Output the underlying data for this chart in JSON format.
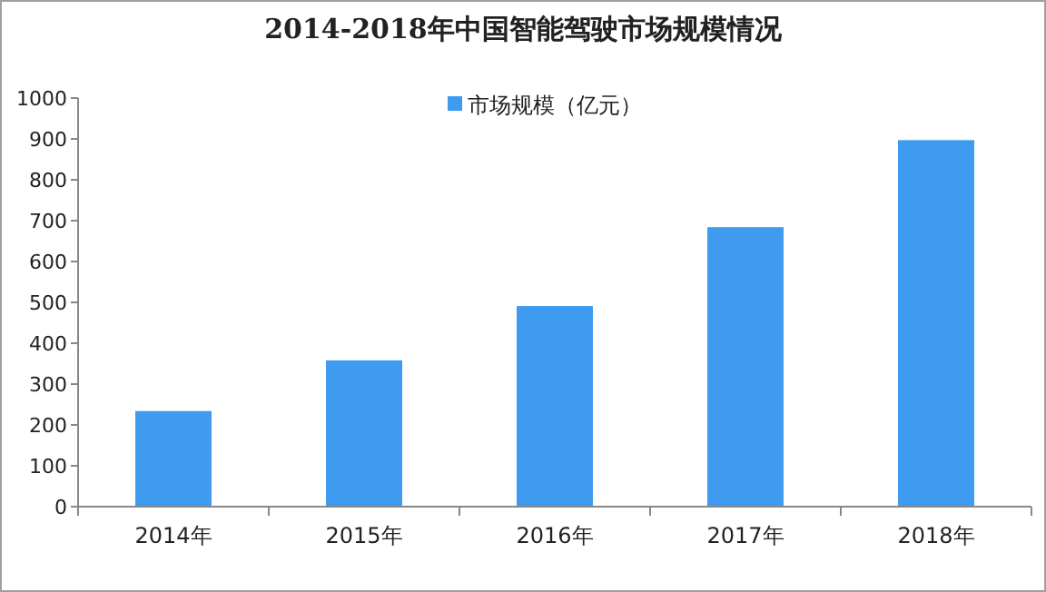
{
  "chart_data": {
    "type": "bar",
    "title": "2014-2018年中国智能驾驶市场规模情况",
    "categories": [
      "2014年",
      "2015年",
      "2016年",
      "2017年",
      "2018年"
    ],
    "series": [
      {
        "name": "市场规模（亿元）",
        "color": "#3e9bf0",
        "values": [
          234,
          358,
          491,
          684,
          897
        ]
      }
    ],
    "ylim": [
      0,
      1000
    ],
    "yticks": [
      0,
      100,
      200,
      300,
      400,
      500,
      600,
      700,
      800,
      900,
      1000
    ],
    "grid": false,
    "legend": "top"
  }
}
